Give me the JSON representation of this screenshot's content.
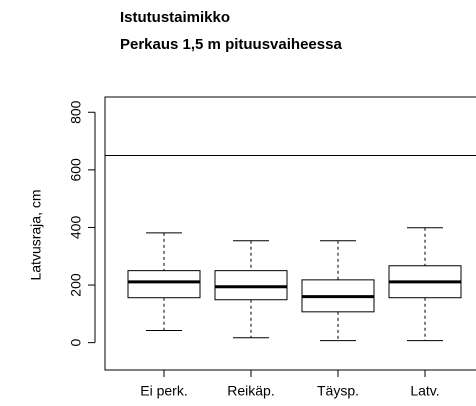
{
  "chart_data": {
    "type": "box",
    "title": "Istutustaimikko",
    "subtitle": "Perkaus 1,5 m pituusvaiheessa",
    "ylabel": "Latvusraja, cm",
    "categories": [
      "Ei perk.",
      "Reikäp.",
      "Täysp.",
      "Latv."
    ],
    "boxes": [
      {
        "low": 42,
        "q1": 156,
        "median": 211,
        "q3": 250,
        "high": 381
      },
      {
        "low": 17,
        "q1": 149,
        "median": 194,
        "q3": 250,
        "high": 354
      },
      {
        "low": 7,
        "q1": 107,
        "median": 160,
        "q3": 218,
        "high": 354
      },
      {
        "low": 7,
        "q1": 156,
        "median": 211,
        "q3": 267,
        "high": 399
      }
    ],
    "hline": 650,
    "color": "#000000",
    "ylim": [
      -95,
      853
    ],
    "yticks": [
      0,
      200,
      400,
      600,
      800
    ]
  }
}
